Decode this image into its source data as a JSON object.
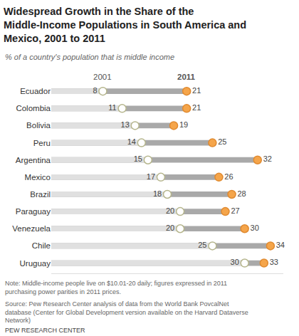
{
  "chart_data": {
    "type": "dumbbell",
    "title": "Widespread Growth in the Share of the Middle-Income Populations in South America and Mexico, 2001 to 2011",
    "subtitle": "% of a country's population that is middle income",
    "categories": [
      "Ecuador",
      "Colombia",
      "Bolivia",
      "Peru",
      "Argentina",
      "Mexico",
      "Brazil",
      "Paraguay",
      "Venezuela",
      "Chile",
      "Uruguay"
    ],
    "series": [
      {
        "name": "2001",
        "color": "#b5b58c",
        "marker": "circle-open",
        "values": [
          8,
          11,
          13,
          14,
          15,
          17,
          18,
          20,
          20,
          25,
          30
        ]
      },
      {
        "name": "2011",
        "color": "#f5a54a",
        "marker": "circle",
        "values": [
          21,
          21,
          19,
          25,
          32,
          26,
          28,
          27,
          30,
          34,
          33
        ]
      }
    ],
    "xlim": [
      0,
      36
    ],
    "orientation": "horizontal",
    "data_labels": true,
    "tick_labels": "y",
    "grid": false,
    "note": "Note: Middle-income people live on $10.01-20 daily; figures expressed in 2011 purchasing power parities in 2011 prices.",
    "source": "Source: Pew Research Center analysis of data from the World Bank PovcalNet database (Center for Global Development version available on the Harvard Dataverse Network)",
    "credit": "PEW RESEARCH CENTER"
  }
}
